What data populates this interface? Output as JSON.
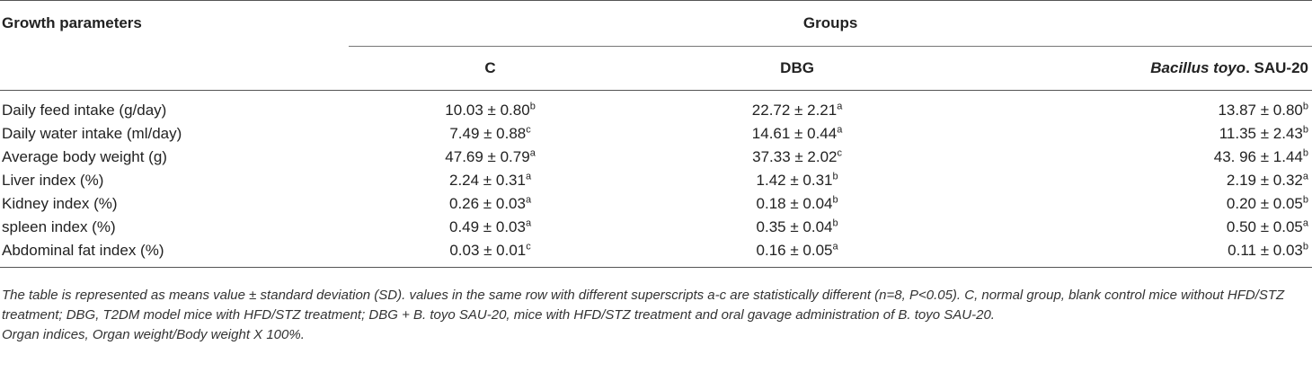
{
  "table": {
    "header": {
      "first_col": "Growth parameters",
      "group_span": "Groups",
      "groups": [
        {
          "italic_part": "",
          "plain_part": "C"
        },
        {
          "italic_part": "",
          "plain_part": "DBG"
        },
        {
          "italic_part": "Bacillus toyo",
          "plain_part": ". SAU-20"
        }
      ]
    },
    "rows": [
      {
        "label": "Daily feed intake (g/day)",
        "cells": [
          {
            "v": "10.03 ± 0.80",
            "s": "b"
          },
          {
            "v": "22.72 ± 2.21",
            "s": "a"
          },
          {
            "v": "13.87 ± 0.80",
            "s": "b"
          }
        ]
      },
      {
        "label": "Daily water intake (ml/day)",
        "cells": [
          {
            "v": "7.49 ± 0.88",
            "s": "c"
          },
          {
            "v": "14.61 ± 0.44",
            "s": "a"
          },
          {
            "v": "11.35 ± 2.43",
            "s": "b"
          }
        ]
      },
      {
        "label": "Average body weight (g)",
        "cells": [
          {
            "v": "47.69 ± 0.79",
            "s": "a"
          },
          {
            "v": "37.33 ± 2.02",
            "s": "c"
          },
          {
            "v": "43. 96 ± 1.44",
            "s": "b"
          }
        ]
      },
      {
        "label": "Liver index (%)",
        "cells": [
          {
            "v": "2.24 ± 0.31",
            "s": "a"
          },
          {
            "v": "1.42 ± 0.31",
            "s": "b"
          },
          {
            "v": "2.19 ± 0.32",
            "s": "a"
          }
        ]
      },
      {
        "label": "Kidney index (%)",
        "cells": [
          {
            "v": "0.26 ± 0.03",
            "s": "a"
          },
          {
            "v": "0.18 ± 0.04",
            "s": "b"
          },
          {
            "v": "0.20 ± 0.05",
            "s": "b"
          }
        ]
      },
      {
        "label": "spleen index (%)",
        "cells": [
          {
            "v": "0.49 ± 0.03",
            "s": "a"
          },
          {
            "v": "0.35 ± 0.04",
            "s": "b"
          },
          {
            "v": "0.50 ± 0.05",
            "s": "a"
          }
        ]
      },
      {
        "label": "Abdominal fat index (%)",
        "cells": [
          {
            "v": "0.03 ± 0.01",
            "s": "c"
          },
          {
            "v": "0.16 ± 0.05",
            "s": "a"
          },
          {
            "v": "0.11 ± 0.03",
            "s": "b"
          }
        ]
      }
    ]
  },
  "footnotes": [
    "The table is represented as means value ± standard deviation (SD). values in the same row with different superscripts a-c are statistically different (n=8, P<0.05). C, normal group, blank control mice without HFD/STZ treatment; DBG, T2DM model mice with HFD/STZ treatment; DBG + B. toyo SAU-20, mice with HFD/STZ treatment and oral gavage administration of B. toyo SAU-20.",
    "Organ indices, Organ weight/Body weight X 100%."
  ]
}
